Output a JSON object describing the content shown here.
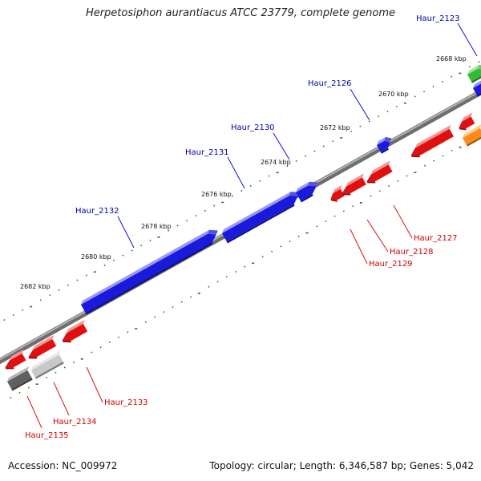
{
  "title": "Herpetosiphon aurantiacus ATCC 23779, complete genome",
  "footer": {
    "accession": "Accession: NC_009972",
    "topology": "Topology: circular; Length: 6,346,587 bp; Genes: 5,042"
  },
  "tick_labels": [
    "2668 kbp",
    "2670 kbp",
    "2672 kbp",
    "2674 kbp",
    "2676 kbp",
    "2678 kbp",
    "2680 kbp",
    "2682 kbp"
  ],
  "colors": {
    "forward_gene": "#1a1adc",
    "reverse_gene": "#e01010",
    "label_forward": "#0000aa",
    "label_reverse": "#cc0000",
    "tick": "#1f7a1f",
    "backbone": "#8c8c8c",
    "leader": "#1010dd",
    "leader_reverse": "#dd1010"
  },
  "genes_forward": [
    {
      "name": "Haur_2123"
    },
    {
      "name": "Haur_2126"
    },
    {
      "name": "Haur_2130"
    },
    {
      "name": "Haur_2131"
    },
    {
      "name": "Haur_2132"
    }
  ],
  "genes_reverse": [
    {
      "name": "Haur_2127"
    },
    {
      "name": "Haur_2128"
    },
    {
      "name": "Haur_2129"
    },
    {
      "name": "Haur_2133"
    },
    {
      "name": "Haur_2134"
    },
    {
      "name": "Haur_2135"
    }
  ],
  "other_features": [
    {
      "type": "green-feature",
      "color": "#33bb33"
    },
    {
      "type": "orange-feature",
      "color": "#ff8c1a"
    },
    {
      "type": "dark-grey-feature",
      "color": "#606060"
    },
    {
      "type": "light-grey-feature",
      "color": "#c8c8c8"
    }
  ]
}
